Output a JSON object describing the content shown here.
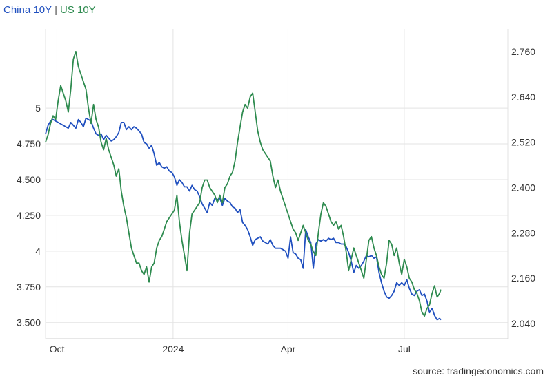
{
  "legend": {
    "series1": "China 10Y",
    "separator": "|",
    "series2": "US 10Y"
  },
  "source": "source: tradingeconomics.com",
  "chart_data": {
    "type": "line",
    "x_ticks": [
      "Oct",
      "2024",
      "Apr",
      "Jul"
    ],
    "x_tick_positions": [
      3,
      95,
      186,
      278
    ],
    "x_range": [
      -6,
      360
    ],
    "left_axis": {
      "ticks": [
        "3.500",
        "3.750",
        "4",
        "4.250",
        "4.500",
        "4.750",
        "5"
      ],
      "tick_values": [
        3.5,
        3.75,
        4,
        4.25,
        4.5,
        4.75,
        5
      ],
      "range": [
        3.388,
        5.554
      ]
    },
    "right_axis": {
      "ticks": [
        "2.040",
        "2.160",
        "2.280",
        "2.400",
        "2.520",
        "2.640",
        "2.760"
      ],
      "tick_values": [
        2.04,
        2.16,
        2.28,
        2.4,
        2.52,
        2.64,
        2.76
      ],
      "range": [
        2.0,
        2.82
      ]
    },
    "grid": true,
    "legend_position": "top-left",
    "series": [
      {
        "name": "US 10Y",
        "axis": "left",
        "color": "#1f4fbf",
        "points": [
          [
            -6,
            4.82
          ],
          [
            -4,
            4.88
          ],
          [
            -2,
            4.91
          ],
          [
            0,
            4.92
          ],
          [
            2,
            4.91
          ],
          [
            4,
            4.9
          ],
          [
            6,
            4.89
          ],
          [
            8,
            4.88
          ],
          [
            10,
            4.87
          ],
          [
            12,
            4.86
          ],
          [
            14,
            4.9
          ],
          [
            16,
            4.88
          ],
          [
            18,
            4.86
          ],
          [
            20,
            4.92
          ],
          [
            22,
            4.9
          ],
          [
            24,
            4.87
          ],
          [
            26,
            4.93
          ],
          [
            28,
            4.92
          ],
          [
            30,
            4.91
          ],
          [
            32,
            4.86
          ],
          [
            34,
            4.82
          ],
          [
            36,
            4.81
          ],
          [
            38,
            4.82
          ],
          [
            40,
            4.78
          ],
          [
            42,
            4.81
          ],
          [
            44,
            4.79
          ],
          [
            46,
            4.77
          ],
          [
            48,
            4.78
          ],
          [
            50,
            4.8
          ],
          [
            52,
            4.83
          ],
          [
            54,
            4.9
          ],
          [
            56,
            4.9
          ],
          [
            58,
            4.85
          ],
          [
            60,
            4.87
          ],
          [
            62,
            4.85
          ],
          [
            64,
            4.87
          ],
          [
            66,
            4.86
          ],
          [
            68,
            4.84
          ],
          [
            70,
            4.82
          ],
          [
            72,
            4.76
          ],
          [
            74,
            4.75
          ],
          [
            76,
            4.72
          ],
          [
            78,
            4.74
          ],
          [
            80,
            4.68
          ],
          [
            82,
            4.6
          ],
          [
            84,
            4.62
          ],
          [
            86,
            4.59
          ],
          [
            88,
            4.58
          ],
          [
            90,
            4.59
          ],
          [
            92,
            4.56
          ],
          [
            94,
            4.55
          ],
          [
            96,
            4.52
          ],
          [
            98,
            4.46
          ],
          [
            100,
            4.5
          ],
          [
            102,
            4.48
          ],
          [
            104,
            4.45
          ],
          [
            106,
            4.45
          ],
          [
            108,
            4.42
          ],
          [
            110,
            4.46
          ],
          [
            112,
            4.43
          ],
          [
            114,
            4.42
          ],
          [
            116,
            4.38
          ],
          [
            118,
            4.33
          ],
          [
            120,
            4.3
          ],
          [
            122,
            4.27
          ],
          [
            124,
            4.34
          ],
          [
            126,
            4.32
          ],
          [
            128,
            4.37
          ],
          [
            130,
            4.36
          ],
          [
            132,
            4.37
          ],
          [
            134,
            4.32
          ],
          [
            136,
            4.37
          ],
          [
            138,
            4.35
          ],
          [
            140,
            4.34
          ],
          [
            142,
            4.31
          ],
          [
            144,
            4.3
          ],
          [
            146,
            4.27
          ],
          [
            148,
            4.29
          ],
          [
            150,
            4.2
          ],
          [
            152,
            4.18
          ],
          [
            154,
            4.15
          ],
          [
            156,
            4.1
          ],
          [
            158,
            4.04
          ],
          [
            160,
            4.08
          ],
          [
            162,
            4.09
          ],
          [
            164,
            4.1
          ],
          [
            166,
            4.07
          ],
          [
            168,
            4.06
          ],
          [
            170,
            4.05
          ],
          [
            172,
            4.08
          ],
          [
            174,
            4.04
          ],
          [
            176,
            4.02
          ],
          [
            178,
            4.02
          ],
          [
            180,
            4.02
          ],
          [
            182,
            4.01
          ],
          [
            184,
            4.0
          ],
          [
            186,
            3.95
          ],
          [
            188,
            4.1
          ],
          [
            190,
            3.99
          ],
          [
            192,
            3.98
          ],
          [
            194,
            3.95
          ],
          [
            196,
            3.94
          ],
          [
            198,
            3.88
          ],
          [
            200,
            4.15
          ],
          [
            202,
            4.1
          ],
          [
            204,
            4.06
          ],
          [
            206,
            3.88
          ],
          [
            208,
            4.05
          ],
          [
            210,
            4.08
          ],
          [
            212,
            4.07
          ],
          [
            214,
            4.08
          ],
          [
            216,
            4.07
          ],
          [
            218,
            4.09
          ],
          [
            220,
            4.08
          ],
          [
            222,
            4.09
          ],
          [
            224,
            4.06
          ],
          [
            226,
            4.06
          ],
          [
            228,
            4.05
          ],
          [
            230,
            4.05
          ],
          [
            232,
            4.03
          ],
          [
            234,
            3.99
          ],
          [
            236,
            3.93
          ],
          [
            238,
            3.85
          ],
          [
            240,
            3.9
          ],
          [
            242,
            3.88
          ],
          [
            244,
            3.9
          ],
          [
            246,
            3.93
          ],
          [
            248,
            3.97
          ],
          [
            250,
            3.96
          ],
          [
            252,
            3.97
          ],
          [
            254,
            3.95
          ],
          [
            256,
            3.96
          ],
          [
            258,
            3.85
          ],
          [
            260,
            3.78
          ],
          [
            262,
            3.72
          ],
          [
            264,
            3.68
          ],
          [
            266,
            3.67
          ],
          [
            268,
            3.69
          ],
          [
            270,
            3.72
          ],
          [
            272,
            3.78
          ],
          [
            274,
            3.76
          ],
          [
            276,
            3.78
          ],
          [
            278,
            3.76
          ],
          [
            280,
            3.8
          ],
          [
            282,
            3.74
          ],
          [
            284,
            3.7
          ],
          [
            286,
            3.69
          ],
          [
            288,
            3.72
          ],
          [
            290,
            3.73
          ],
          [
            292,
            3.69
          ],
          [
            294,
            3.7
          ],
          [
            296,
            3.65
          ],
          [
            298,
            3.57
          ],
          [
            300,
            3.6
          ],
          [
            302,
            3.55
          ],
          [
            304,
            3.52
          ],
          [
            306,
            3.53
          ],
          [
            307,
            3.52
          ]
        ]
      },
      {
        "name": "China 10Y",
        "axis": "right",
        "color": "#2e8b4f",
        "points": [
          [
            -6,
            2.52
          ],
          [
            -4,
            2.54
          ],
          [
            -2,
            2.57
          ],
          [
            0,
            2.59
          ],
          [
            2,
            2.58
          ],
          [
            4,
            2.63
          ],
          [
            6,
            2.67
          ],
          [
            8,
            2.65
          ],
          [
            10,
            2.63
          ],
          [
            12,
            2.6
          ],
          [
            14,
            2.66
          ],
          [
            16,
            2.74
          ],
          [
            18,
            2.76
          ],
          [
            20,
            2.72
          ],
          [
            22,
            2.7
          ],
          [
            24,
            2.68
          ],
          [
            26,
            2.66
          ],
          [
            28,
            2.61
          ],
          [
            30,
            2.57
          ],
          [
            32,
            2.62
          ],
          [
            34,
            2.58
          ],
          [
            36,
            2.56
          ],
          [
            38,
            2.52
          ],
          [
            40,
            2.5
          ],
          [
            42,
            2.53
          ],
          [
            44,
            2.5
          ],
          [
            46,
            2.48
          ],
          [
            48,
            2.46
          ],
          [
            50,
            2.43
          ],
          [
            52,
            2.45
          ],
          [
            54,
            2.39
          ],
          [
            56,
            2.35
          ],
          [
            58,
            2.32
          ],
          [
            60,
            2.28
          ],
          [
            62,
            2.24
          ],
          [
            64,
            2.22
          ],
          [
            66,
            2.2
          ],
          [
            68,
            2.2
          ],
          [
            70,
            2.18
          ],
          [
            72,
            2.17
          ],
          [
            74,
            2.19
          ],
          [
            76,
            2.15
          ],
          [
            78,
            2.19
          ],
          [
            80,
            2.2
          ],
          [
            82,
            2.24
          ],
          [
            84,
            2.26
          ],
          [
            86,
            2.27
          ],
          [
            88,
            2.29
          ],
          [
            90,
            2.31
          ],
          [
            92,
            2.32
          ],
          [
            94,
            2.33
          ],
          [
            96,
            2.34
          ],
          [
            98,
            2.38
          ],
          [
            100,
            2.31
          ],
          [
            102,
            2.26
          ],
          [
            104,
            2.22
          ],
          [
            106,
            2.18
          ],
          [
            108,
            2.28
          ],
          [
            110,
            2.33
          ],
          [
            112,
            2.34
          ],
          [
            114,
            2.35
          ],
          [
            116,
            2.36
          ],
          [
            118,
            2.4
          ],
          [
            120,
            2.42
          ],
          [
            122,
            2.42
          ],
          [
            124,
            2.4
          ],
          [
            126,
            2.39
          ],
          [
            128,
            2.38
          ],
          [
            130,
            2.36
          ],
          [
            132,
            2.38
          ],
          [
            134,
            2.36
          ],
          [
            136,
            2.4
          ],
          [
            138,
            2.41
          ],
          [
            140,
            2.43
          ],
          [
            142,
            2.44
          ],
          [
            144,
            2.47
          ],
          [
            146,
            2.52
          ],
          [
            148,
            2.56
          ],
          [
            150,
            2.6
          ],
          [
            152,
            2.62
          ],
          [
            154,
            2.61
          ],
          [
            156,
            2.64
          ],
          [
            158,
            2.65
          ],
          [
            160,
            2.6
          ],
          [
            162,
            2.55
          ],
          [
            164,
            2.52
          ],
          [
            166,
            2.5
          ],
          [
            168,
            2.49
          ],
          [
            170,
            2.48
          ],
          [
            172,
            2.47
          ],
          [
            174,
            2.43
          ],
          [
            176,
            2.4
          ],
          [
            178,
            2.42
          ],
          [
            180,
            2.39
          ],
          [
            182,
            2.37
          ],
          [
            184,
            2.35
          ],
          [
            186,
            2.33
          ],
          [
            188,
            2.31
          ],
          [
            190,
            2.29
          ],
          [
            192,
            2.28
          ],
          [
            194,
            2.26
          ],
          [
            196,
            2.28
          ],
          [
            198,
            2.3
          ],
          [
            200,
            2.28
          ],
          [
            202,
            2.26
          ],
          [
            204,
            2.25
          ],
          [
            206,
            2.23
          ],
          [
            208,
            2.22
          ],
          [
            210,
            2.28
          ],
          [
            212,
            2.33
          ],
          [
            214,
            2.36
          ],
          [
            216,
            2.35
          ],
          [
            218,
            2.33
          ],
          [
            220,
            2.31
          ],
          [
            222,
            2.3
          ],
          [
            224,
            2.31
          ],
          [
            226,
            2.29
          ],
          [
            228,
            2.3
          ],
          [
            230,
            2.27
          ],
          [
            232,
            2.23
          ],
          [
            234,
            2.18
          ],
          [
            236,
            2.21
          ],
          [
            238,
            2.24
          ],
          [
            240,
            2.22
          ],
          [
            242,
            2.2
          ],
          [
            244,
            2.18
          ],
          [
            246,
            2.16
          ],
          [
            248,
            2.21
          ],
          [
            250,
            2.26
          ],
          [
            252,
            2.27
          ],
          [
            254,
            2.24
          ],
          [
            256,
            2.22
          ],
          [
            258,
            2.19
          ],
          [
            260,
            2.17
          ],
          [
            262,
            2.16
          ],
          [
            264,
            2.2
          ],
          [
            266,
            2.26
          ],
          [
            268,
            2.25
          ],
          [
            270,
            2.22
          ],
          [
            272,
            2.24
          ],
          [
            274,
            2.2
          ],
          [
            276,
            2.17
          ],
          [
            278,
            2.21
          ],
          [
            280,
            2.19
          ],
          [
            282,
            2.16
          ],
          [
            284,
            2.15
          ],
          [
            286,
            2.13
          ],
          [
            288,
            2.12
          ],
          [
            290,
            2.1
          ],
          [
            292,
            2.07
          ],
          [
            294,
            2.06
          ],
          [
            296,
            2.08
          ],
          [
            298,
            2.09
          ],
          [
            300,
            2.12
          ],
          [
            302,
            2.14
          ],
          [
            304,
            2.11
          ],
          [
            306,
            2.12
          ],
          [
            307,
            2.13
          ]
        ]
      }
    ]
  }
}
